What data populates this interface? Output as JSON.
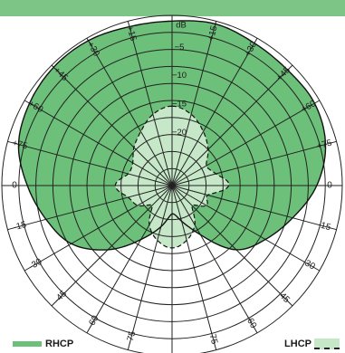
{
  "colors": {
    "band": "#7cc587",
    "rhcp_fill": "#6cc079",
    "lhcp_fill": "#c6e8c8",
    "grid": "#222222",
    "outline": "#111111"
  },
  "legend": {
    "rhcp_label": "RHCP",
    "lhcp_label": "LHCP"
  },
  "chart_data": {
    "type": "polar",
    "radial_unit_label": "dB",
    "radial_ticks": [
      -5,
      -10,
      -15,
      -20
    ],
    "radial_range": [
      -30,
      0
    ],
    "angle_tick_labels": [
      {
        "angle": 15,
        "label": "+15"
      },
      {
        "angle": 30,
        "label": "+30"
      },
      {
        "angle": 45,
        "label": "+45"
      },
      {
        "angle": 60,
        "label": "+60"
      },
      {
        "angle": 75,
        "label": "+75"
      },
      {
        "angle": -15,
        "label": "+15"
      },
      {
        "angle": -30,
        "label": "+30"
      },
      {
        "angle": -45,
        "label": "+45"
      },
      {
        "angle": -60,
        "label": "+60"
      },
      {
        "angle": -75,
        "label": "+75"
      },
      {
        "angle": 90,
        "label": "0"
      },
      {
        "angle": -90,
        "label": "0"
      },
      {
        "angle": 105,
        "label": "-15"
      },
      {
        "angle": 120,
        "label": "-30"
      },
      {
        "angle": 135,
        "label": "-45"
      },
      {
        "angle": 150,
        "label": "-60"
      },
      {
        "angle": 165,
        "label": "-75"
      },
      {
        "angle": -105,
        "label": "-15"
      },
      {
        "angle": -120,
        "label": "-30"
      },
      {
        "angle": -135,
        "label": "-45"
      },
      {
        "angle": -150,
        "label": "-60"
      },
      {
        "angle": -165,
        "label": "-75"
      }
    ],
    "series": [
      {
        "name": "RHCP",
        "angles": [
          0,
          15,
          30,
          45,
          60,
          75,
          90,
          105,
          120,
          135,
          150,
          165,
          180,
          -165,
          -150,
          -135,
          -120,
          -105,
          -90,
          -75,
          -60,
          -45,
          -30,
          -15
        ],
        "db": [
          -1,
          -0.5,
          -1,
          -1.2,
          -1,
          -2,
          -4.5,
          -8,
          -11,
          -14,
          -20,
          -23.5,
          -25,
          -22.5,
          -19,
          -14,
          -9.5,
          -7,
          -4.5,
          -2,
          -1,
          -0.5,
          -0.5,
          -1
        ]
      },
      {
        "name": "LHCP",
        "angles": [
          0,
          15,
          30,
          45,
          60,
          75,
          90,
          105,
          120,
          135,
          150,
          165,
          180,
          -165,
          -150,
          -135,
          -120,
          -105,
          -90,
          -75,
          -60,
          -45,
          -30,
          -15
        ],
        "db": [
          -16,
          -17,
          -19,
          -21,
          -23,
          -22,
          -20,
          -23.5,
          -23,
          -25,
          -22,
          -20,
          -19,
          -20,
          -22,
          -25,
          -23,
          -22,
          -20,
          -22,
          -22,
          -20.5,
          -19,
          -17
        ]
      }
    ]
  }
}
